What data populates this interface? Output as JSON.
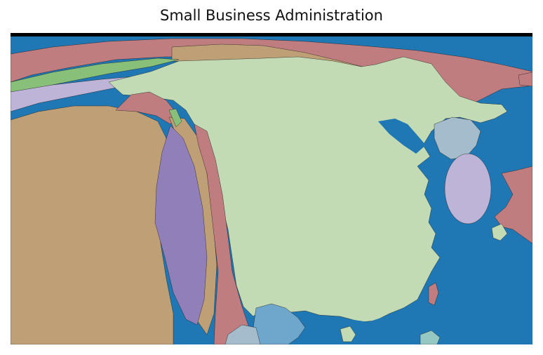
{
  "map": {
    "title": "Small Business Administration",
    "colors": {
      "ocean": "#1f77b4",
      "land_main": "#c2dbb4",
      "land_tan": "#bfa076",
      "land_rose": "#c07d80",
      "land_purple": "#917fba",
      "land_lavender": "#bdb4d8",
      "land_green": "#88c07a",
      "land_steel": "#a4bccb",
      "land_mid_blue": "#6ea6cc",
      "land_teal": "#96c8c3",
      "border": "#000000"
    }
  }
}
